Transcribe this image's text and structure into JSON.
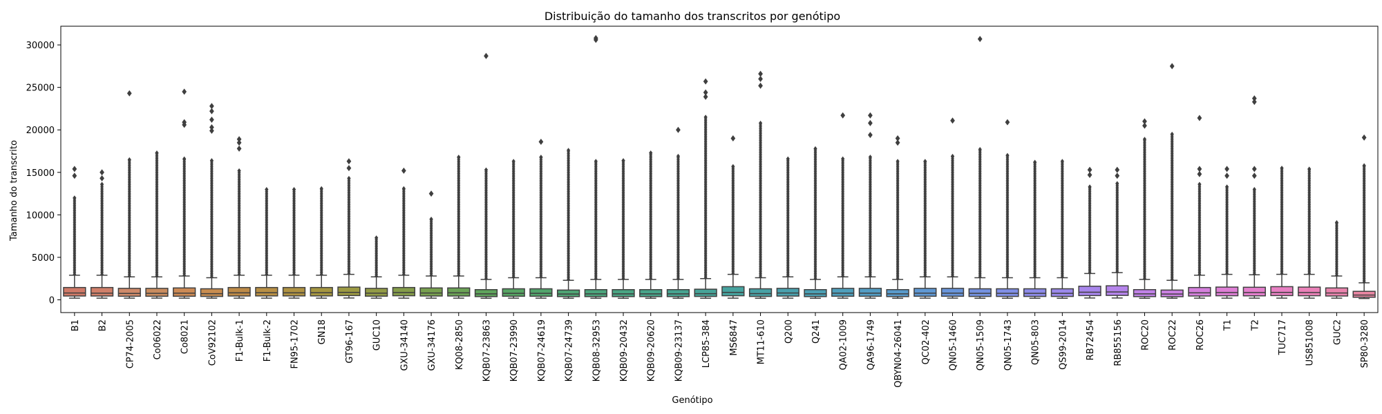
{
  "chart_data": {
    "type": "boxplot",
    "title": "Distribuição do tamanho dos transcritos por genótipo",
    "xlabel": "Genótipo",
    "ylabel": "Tamanho do transcrito",
    "ylim": [
      -1500,
      32200
    ],
    "yticks": [
      0,
      5000,
      10000,
      15000,
      20000,
      25000,
      30000
    ],
    "grid": false,
    "legend": "none",
    "box_edge_color": "#3f3f3f",
    "series": [
      {
        "name": "B1",
        "q1": 450,
        "median": 800,
        "q3": 1450,
        "whislo": 200,
        "whishi": 2900,
        "outliers_range": [
          3000,
          12000
        ],
        "outliers": [
          14600,
          15400
        ],
        "color": "#d07a68"
      },
      {
        "name": "B2",
        "q1": 450,
        "median": 780,
        "q3": 1450,
        "whislo": 200,
        "whishi": 2900,
        "outliers_range": [
          3000,
          13600
        ],
        "outliers": [
          14300,
          15000
        ],
        "color": "#d1806a"
      },
      {
        "name": "CP74-2005",
        "q1": 420,
        "median": 750,
        "q3": 1350,
        "whislo": 200,
        "whishi": 2700,
        "outliers_range": [
          2800,
          16500
        ],
        "outliers": [
          24300
        ],
        "color": "#cf8a6a"
      },
      {
        "name": "Co06022",
        "q1": 420,
        "median": 760,
        "q3": 1350,
        "whislo": 200,
        "whishi": 2700,
        "outliers_range": [
          2800,
          17300
        ],
        "outliers": [],
        "color": "#c98c5f"
      },
      {
        "name": "Co8021",
        "q1": 420,
        "median": 780,
        "q3": 1400,
        "whislo": 200,
        "whishi": 2800,
        "outliers_range": [
          2900,
          16600
        ],
        "outliers": [
          20600,
          20900,
          24500
        ],
        "color": "#cc8a55"
      },
      {
        "name": "CoV92102",
        "q1": 400,
        "median": 720,
        "q3": 1300,
        "whislo": 200,
        "whishi": 2600,
        "outliers_range": [
          2700,
          16400
        ],
        "outliers": [
          19900,
          20300,
          21200,
          22200,
          22800
        ],
        "color": "#c98d50"
      },
      {
        "name": "F1-Bulk-1",
        "q1": 450,
        "median": 820,
        "q3": 1450,
        "whislo": 200,
        "whishi": 2900,
        "outliers_range": [
          3000,
          15200
        ],
        "outliers": [
          17800,
          18500,
          18900
        ],
        "color": "#bd8a47"
      },
      {
        "name": "F1-Bulk-2",
        "q1": 460,
        "median": 830,
        "q3": 1450,
        "whislo": 200,
        "whishi": 2900,
        "outliers_range": [
          3000,
          13000
        ],
        "outliers": [],
        "color": "#b88f45"
      },
      {
        "name": "FN95-1702",
        "q1": 460,
        "median": 820,
        "q3": 1450,
        "whislo": 200,
        "whishi": 2900,
        "outliers_range": [
          3000,
          13000
        ],
        "outliers": [],
        "color": "#af9242"
      },
      {
        "name": "GN18",
        "q1": 460,
        "median": 830,
        "q3": 1450,
        "whislo": 200,
        "whishi": 2900,
        "outliers_range": [
          3000,
          13100
        ],
        "outliers": [],
        "color": "#a59640"
      },
      {
        "name": "GT96-167",
        "q1": 500,
        "median": 880,
        "q3": 1500,
        "whislo": 220,
        "whishi": 3000,
        "outliers_range": [
          3100,
          14300
        ],
        "outliers": [
          15500,
          16300
        ],
        "color": "#9c9a43"
      },
      {
        "name": "GUC10",
        "q1": 430,
        "median": 780,
        "q3": 1350,
        "whislo": 200,
        "whishi": 2700,
        "outliers_range": [
          2800,
          7300
        ],
        "outliers": [],
        "color": "#929b46"
      },
      {
        "name": "GXU-34140",
        "q1": 480,
        "median": 850,
        "q3": 1450,
        "whislo": 200,
        "whishi": 2900,
        "outliers_range": [
          3000,
          13100
        ],
        "outliers": [
          15200
        ],
        "color": "#859d4a"
      },
      {
        "name": "GXU-34176",
        "q1": 450,
        "median": 800,
        "q3": 1400,
        "whislo": 200,
        "whishi": 2800,
        "outliers_range": [
          2900,
          9500
        ],
        "outliers": [
          12500
        ],
        "color": "#78a04f"
      },
      {
        "name": "KQ08-2850",
        "q1": 450,
        "median": 820,
        "q3": 1400,
        "whislo": 200,
        "whishi": 2800,
        "outliers_range": [
          2900,
          16800
        ],
        "outliers": [],
        "color": "#6ba256"
      },
      {
        "name": "KQB07-23863",
        "q1": 380,
        "median": 700,
        "q3": 1200,
        "whislo": 180,
        "whishi": 2400,
        "outliers_range": [
          2500,
          15300
        ],
        "outliers": [
          28700
        ],
        "color": "#5fa45c"
      },
      {
        "name": "KQB07-23990",
        "q1": 420,
        "median": 760,
        "q3": 1300,
        "whislo": 200,
        "whishi": 2600,
        "outliers_range": [
          2700,
          16300
        ],
        "outliers": [],
        "color": "#57a564"
      },
      {
        "name": "KQB07-24619",
        "q1": 420,
        "median": 760,
        "q3": 1300,
        "whislo": 200,
        "whishi": 2600,
        "outliers_range": [
          2700,
          16800
        ],
        "outliers": [
          18600
        ],
        "color": "#52a56c"
      },
      {
        "name": "KQB07-24739",
        "q1": 380,
        "median": 680,
        "q3": 1150,
        "whislo": 180,
        "whishi": 2300,
        "outliers_range": [
          2400,
          17600
        ],
        "outliers": [],
        "color": "#4fa574"
      },
      {
        "name": "KQB08-32953",
        "q1": 380,
        "median": 700,
        "q3": 1200,
        "whislo": 180,
        "whishi": 2400,
        "outliers_range": [
          2500,
          16300
        ],
        "outliers": [
          30600,
          30800
        ],
        "color": "#4ca57c"
      },
      {
        "name": "KQB09-20432",
        "q1": 380,
        "median": 700,
        "q3": 1200,
        "whislo": 180,
        "whishi": 2400,
        "outliers_range": [
          2500,
          16400
        ],
        "outliers": [],
        "color": "#4aa583"
      },
      {
        "name": "KQB09-20620",
        "q1": 380,
        "median": 700,
        "q3": 1200,
        "whislo": 180,
        "whishi": 2400,
        "outliers_range": [
          2500,
          17300
        ],
        "outliers": [],
        "color": "#48a48a"
      },
      {
        "name": "KQB09-23137",
        "q1": 380,
        "median": 700,
        "q3": 1200,
        "whislo": 180,
        "whishi": 2400,
        "outliers_range": [
          2500,
          16900
        ],
        "outliers": [
          20000
        ],
        "color": "#47a491"
      },
      {
        "name": "LCP85-384",
        "q1": 400,
        "median": 720,
        "q3": 1250,
        "whislo": 180,
        "whishi": 2500,
        "outliers_range": [
          2600,
          21500
        ],
        "outliers": [
          23900,
          24400,
          25700
        ],
        "color": "#47a398"
      },
      {
        "name": "MS6847",
        "q1": 480,
        "median": 880,
        "q3": 1550,
        "whislo": 200,
        "whishi": 3000,
        "outliers_range": [
          3100,
          15700
        ],
        "outliers": [
          19000
        ],
        "color": "#47a39f"
      },
      {
        "name": "MT11-610",
        "q1": 400,
        "median": 730,
        "q3": 1300,
        "whislo": 180,
        "whishi": 2600,
        "outliers_range": [
          2700,
          20800
        ],
        "outliers": [
          25200,
          26000,
          26600
        ],
        "color": "#48a2a6"
      },
      {
        "name": "Q200",
        "q1": 440,
        "median": 800,
        "q3": 1350,
        "whislo": 200,
        "whishi": 2700,
        "outliers_range": [
          2800,
          16600
        ],
        "outliers": [],
        "color": "#4aa1ad"
      },
      {
        "name": "Q241",
        "q1": 380,
        "median": 700,
        "q3": 1200,
        "whislo": 180,
        "whishi": 2400,
        "outliers_range": [
          2500,
          17800
        ],
        "outliers": [],
        "color": "#4ca0b4"
      },
      {
        "name": "QA02-1009",
        "q1": 420,
        "median": 780,
        "q3": 1350,
        "whislo": 200,
        "whishi": 2700,
        "outliers_range": [
          2800,
          16600
        ],
        "outliers": [
          21700
        ],
        "color": "#4f9fbc"
      },
      {
        "name": "QA96-1749",
        "q1": 420,
        "median": 780,
        "q3": 1350,
        "whislo": 200,
        "whishi": 2700,
        "outliers_range": [
          2800,
          16800
        ],
        "outliers": [
          19400,
          20800,
          21700
        ],
        "color": "#539dc4"
      },
      {
        "name": "QBYN04-26041",
        "q1": 380,
        "median": 700,
        "q3": 1200,
        "whislo": 180,
        "whishi": 2400,
        "outliers_range": [
          2500,
          16300
        ],
        "outliers": [
          18500,
          19000
        ],
        "color": "#599bcc"
      },
      {
        "name": "QC02-402",
        "q1": 420,
        "median": 780,
        "q3": 1350,
        "whislo": 200,
        "whishi": 2700,
        "outliers_range": [
          2800,
          16300
        ],
        "outliers": [],
        "color": "#6098d3"
      },
      {
        "name": "QN05-1460",
        "q1": 420,
        "median": 780,
        "q3": 1350,
        "whislo": 200,
        "whishi": 2700,
        "outliers_range": [
          2800,
          16900
        ],
        "outliers": [
          21100
        ],
        "color": "#6995da"
      },
      {
        "name": "QN05-1509",
        "q1": 400,
        "median": 760,
        "q3": 1300,
        "whislo": 180,
        "whishi": 2600,
        "outliers_range": [
          2700,
          17700
        ],
        "outliers": [
          30700
        ],
        "color": "#7592e1"
      },
      {
        "name": "QN05-1743",
        "q1": 400,
        "median": 760,
        "q3": 1300,
        "whislo": 180,
        "whishi": 2600,
        "outliers_range": [
          2700,
          17000
        ],
        "outliers": [
          20900
        ],
        "color": "#818fe6"
      },
      {
        "name": "QN05-803",
        "q1": 400,
        "median": 760,
        "q3": 1300,
        "whislo": 180,
        "whishi": 2600,
        "outliers_range": [
          2700,
          16200
        ],
        "outliers": [],
        "color": "#8e8ce9"
      },
      {
        "name": "QS99-2014",
        "q1": 400,
        "median": 760,
        "q3": 1300,
        "whislo": 180,
        "whishi": 2600,
        "outliers_range": [
          2700,
          16300
        ],
        "outliers": [],
        "color": "#9b89eb"
      },
      {
        "name": "RB72454",
        "q1": 500,
        "median": 900,
        "q3": 1600,
        "whislo": 220,
        "whishi": 3100,
        "outliers_range": [
          3200,
          13300
        ],
        "outliers": [
          14700,
          15300
        ],
        "color": "#a886ec"
      },
      {
        "name": "RB855156",
        "q1": 520,
        "median": 930,
        "q3": 1650,
        "whislo": 220,
        "whishi": 3200,
        "outliers_range": [
          3300,
          13700
        ],
        "outliers": [
          14600,
          15300
        ],
        "color": "#b584eb"
      },
      {
        "name": "ROC20",
        "q1": 380,
        "median": 700,
        "q3": 1200,
        "whislo": 180,
        "whishi": 2400,
        "outliers_range": [
          2500,
          18900
        ],
        "outliers": [
          20500,
          21000
        ],
        "color": "#c182e8"
      },
      {
        "name": "ROC22",
        "q1": 370,
        "median": 680,
        "q3": 1150,
        "whislo": 180,
        "whishi": 2300,
        "outliers_range": [
          2400,
          19500
        ],
        "outliers": [
          27500
        ],
        "color": "#cc81e3"
      },
      {
        "name": "ROC26",
        "q1": 450,
        "median": 820,
        "q3": 1450,
        "whislo": 200,
        "whishi": 2900,
        "outliers_range": [
          3000,
          13600
        ],
        "outliers": [
          14800,
          15400,
          21400
        ],
        "color": "#d580dd"
      },
      {
        "name": "T1",
        "q1": 480,
        "median": 860,
        "q3": 1500,
        "whislo": 200,
        "whishi": 3000,
        "outliers_range": [
          3100,
          13300
        ],
        "outliers": [
          14600,
          15400
        ],
        "color": "#de7fd5"
      },
      {
        "name": "T2",
        "q1": 470,
        "median": 850,
        "q3": 1480,
        "whislo": 200,
        "whishi": 2950,
        "outliers_range": [
          3050,
          13000
        ],
        "outliers": [
          14600,
          15400,
          23300,
          23700
        ],
        "color": "#e47fcd"
      },
      {
        "name": "TUC717",
        "q1": 500,
        "median": 880,
        "q3": 1550,
        "whislo": 200,
        "whishi": 3000,
        "outliers_range": [
          3100,
          15500
        ],
        "outliers": [],
        "color": "#e880c3"
      },
      {
        "name": "US851008",
        "q1": 480,
        "median": 860,
        "q3": 1500,
        "whislo": 200,
        "whishi": 3000,
        "outliers_range": [
          3100,
          15400
        ],
        "outliers": [],
        "color": "#ea81b8"
      },
      {
        "name": "GUC2",
        "q1": 450,
        "median": 800,
        "q3": 1400,
        "whislo": 200,
        "whishi": 2800,
        "outliers_range": [
          2900,
          9100
        ],
        "outliers": [],
        "color": "#e983ad"
      },
      {
        "name": "SP80-3280",
        "q1": 300,
        "median": 560,
        "q3": 1000,
        "whislo": 150,
        "whishi": 2000,
        "outliers_range": [
          2100,
          15800
        ],
        "outliers": [
          19100
        ],
        "color": "#e886a2"
      }
    ]
  }
}
